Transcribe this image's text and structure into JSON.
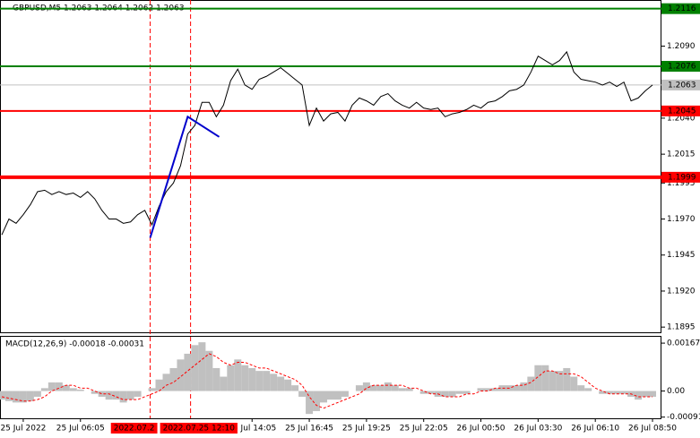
{
  "chart_data": [
    {
      "type": "line",
      "title": "GBPUSD,M5  1.2063 1.2064 1.2062 1.2063",
      "color": "#000000",
      "values": [
        1.1959,
        1.197,
        1.1967,
        1.1973,
        1.198,
        1.1989,
        1.199,
        1.1987,
        1.1989,
        1.1987,
        1.1988,
        1.1985,
        1.1989,
        1.1984,
        1.1976,
        1.197,
        1.197,
        1.1967,
        1.1968,
        1.1973,
        1.1976,
        1.1966,
        1.1979,
        1.1989,
        1.1995,
        1.2007,
        1.2029,
        1.2035,
        1.2051,
        1.2051,
        1.2041,
        1.2049,
        1.2066,
        1.2074,
        1.2063,
        1.206,
        1.2067,
        1.2069,
        1.2072,
        1.2075,
        1.2071,
        1.2067,
        1.2063,
        1.2035,
        1.2047,
        1.2038,
        1.2043,
        1.2044,
        1.2038,
        1.2049,
        1.2054,
        1.2052,
        1.2049,
        1.2055,
        1.2057,
        1.2052,
        1.2049,
        1.2047,
        1.2051,
        1.2047,
        1.2046,
        1.2047,
        1.2041,
        1.2043,
        1.2044,
        1.2046,
        1.2049,
        1.2047,
        1.2051,
        1.2052,
        1.2055,
        1.2059,
        1.206,
        1.2063,
        1.2072,
        1.2083,
        1.208,
        1.2077,
        1.208,
        1.2086,
        1.2072,
        1.2067,
        1.2066,
        1.2065,
        1.2063,
        1.2065,
        1.2062,
        1.2065,
        1.2052,
        1.2054,
        1.2059,
        1.2063
      ],
      "xlim": [
        -0.25,
        91.75
      ],
      "xticks": [
        {
          "value": 3,
          "label": "25 Jul 2022"
        },
        {
          "value": 11,
          "label": "25 Jul 06:05"
        },
        {
          "value": 35,
          "label": "25 Jul 14:05"
        },
        {
          "value": 43,
          "label": "25 Jul 16:45"
        },
        {
          "value": 51,
          "label": "25 Jul 19:25"
        },
        {
          "value": 59,
          "label": "25 Jul 22:05"
        },
        {
          "value": 67,
          "label": "26 Jul 00:50"
        },
        {
          "value": 75,
          "label": "26 Jul 03:30"
        },
        {
          "value": 83,
          "label": "26 Jul 06:10"
        },
        {
          "value": 91,
          "label": "26 Jul 08:50"
        }
      ],
      "ylim": [
        1.1892,
        1.2122
      ],
      "yticks": [
        {
          "value": 1.209,
          "label": "1.2090"
        },
        {
          "value": 1.204,
          "label": "1.2040"
        },
        1.2015,
        1.1995,
        {
          "value": 1.197,
          "label": "1.1970"
        },
        1.1945,
        {
          "value": 1.192,
          "label": "1.1920"
        },
        1.1895
      ],
      "levels": [
        {
          "value": 1.2116,
          "color": "#008000"
        },
        {
          "value": 1.2076,
          "color": "#008000"
        },
        {
          "value": 1.2045,
          "color": "#ff0000"
        },
        {
          "value": 1.1999,
          "color": "#ff0000"
        },
        {
          "value": 1.2063,
          "color": "#c0c0c0"
        }
      ],
      "markers": [
        {
          "x": 20.75,
          "label": "2022.07.2"
        },
        {
          "x": 26.4,
          "label": "2022.07.25 12:10"
        }
      ],
      "trend_line": {
        "color": "#0000cc",
        "x": [
          20.75,
          26,
          30.4
        ],
        "values": [
          1.1957,
          1.2041,
          1.2027
        ]
      }
    },
    {
      "type": "macd",
      "title": "MACD(12,26,9) -0.00018 -0.00031",
      "xlim": [
        -0.25,
        91.75
      ],
      "ylim": [
        -0.00092,
        0.00186
      ],
      "yticks": [
        0.00167,
        {
          "value": 0,
          "label": "0.00"
        },
        -0.00091
      ],
      "series": [
        {
          "color": "#c0c0c0",
          "values": [
            -0.0003,
            -0.00035,
            -0.0004,
            -0.0004,
            -0.00035,
            -0.0002,
            0.0001,
            0.0003,
            0.0003,
            0.0002,
            0.0001,
            5e-05,
            0.0,
            -0.0001,
            -0.0002,
            -0.0003,
            -0.0003,
            -0.0004,
            -0.0003,
            -0.0002,
            0.0,
            0.0001,
            0.0004,
            0.0006,
            0.0008,
            0.0011,
            0.0013,
            0.0016,
            0.0017,
            0.0014,
            0.0008,
            0.0005,
            0.0009,
            0.0011,
            0.0009,
            0.0008,
            0.0007,
            0.0007,
            0.0006,
            0.0005,
            0.0004,
            0.0002,
            -0.0002,
            -0.0008,
            -0.0007,
            -0.0004,
            -0.0003,
            -0.0003,
            -0.0002,
            0.0,
            0.0002,
            0.0003,
            0.0002,
            0.0002,
            0.0003,
            0.0002,
            0.0001,
            0.0001,
            0.0,
            -0.0001,
            -0.0001,
            -0.0002,
            -0.0002,
            -0.0002,
            -0.0001,
            -0.0001,
            0.0,
            0.0001,
            0.0001,
            0.0001,
            0.0002,
            0.0002,
            0.0002,
            0.0003,
            0.0005,
            0.0009,
            0.0009,
            0.0007,
            0.0007,
            0.0008,
            0.0005,
            0.0002,
            0.0001,
            0.0,
            -0.0001,
            -0.0001,
            -0.0001,
            -0.0001,
            -0.0002,
            -0.0003,
            -0.0002,
            -0.0002
          ]
        },
        {
          "color": "#ff0000",
          "values": [
            -0.0002,
            -0.00025,
            -0.0003,
            -0.00035,
            -0.00035,
            -0.0003,
            -0.0002,
            0.0,
            0.0001,
            0.0002,
            0.0002,
            0.0001,
            0.0001,
            0.0,
            -0.0001,
            -0.0001,
            -0.0002,
            -0.0003,
            -0.0003,
            -0.0003,
            -0.0002,
            -0.0001,
            0.0,
            0.0002,
            0.0003,
            0.0005,
            0.0007,
            0.0009,
            0.0011,
            0.0013,
            0.0012,
            0.001,
            0.0009,
            0.001,
            0.001,
            0.0009,
            0.0008,
            0.0008,
            0.0007,
            0.0006,
            0.0005,
            0.0004,
            0.0002,
            -0.0002,
            -0.0005,
            -0.0006,
            -0.0005,
            -0.0004,
            -0.0003,
            -0.0002,
            -0.0001,
            0.0001,
            0.0002,
            0.0002,
            0.0002,
            0.0002,
            0.0002,
            0.0001,
            0.0001,
            0.0,
            -0.0001,
            -0.0001,
            -0.0002,
            -0.0002,
            -0.0002,
            -0.0001,
            -0.0001,
            0.0,
            0.0,
            0.0001,
            0.0001,
            0.0001,
            0.0002,
            0.0002,
            0.0003,
            0.0005,
            0.0007,
            0.0007,
            0.0006,
            0.0006,
            0.0006,
            0.0005,
            0.0003,
            0.0001,
            0.0,
            -0.0001,
            -0.0001,
            -0.0001,
            -0.0001,
            -0.0002,
            -0.0002,
            -0.0002
          ]
        }
      ]
    }
  ]
}
